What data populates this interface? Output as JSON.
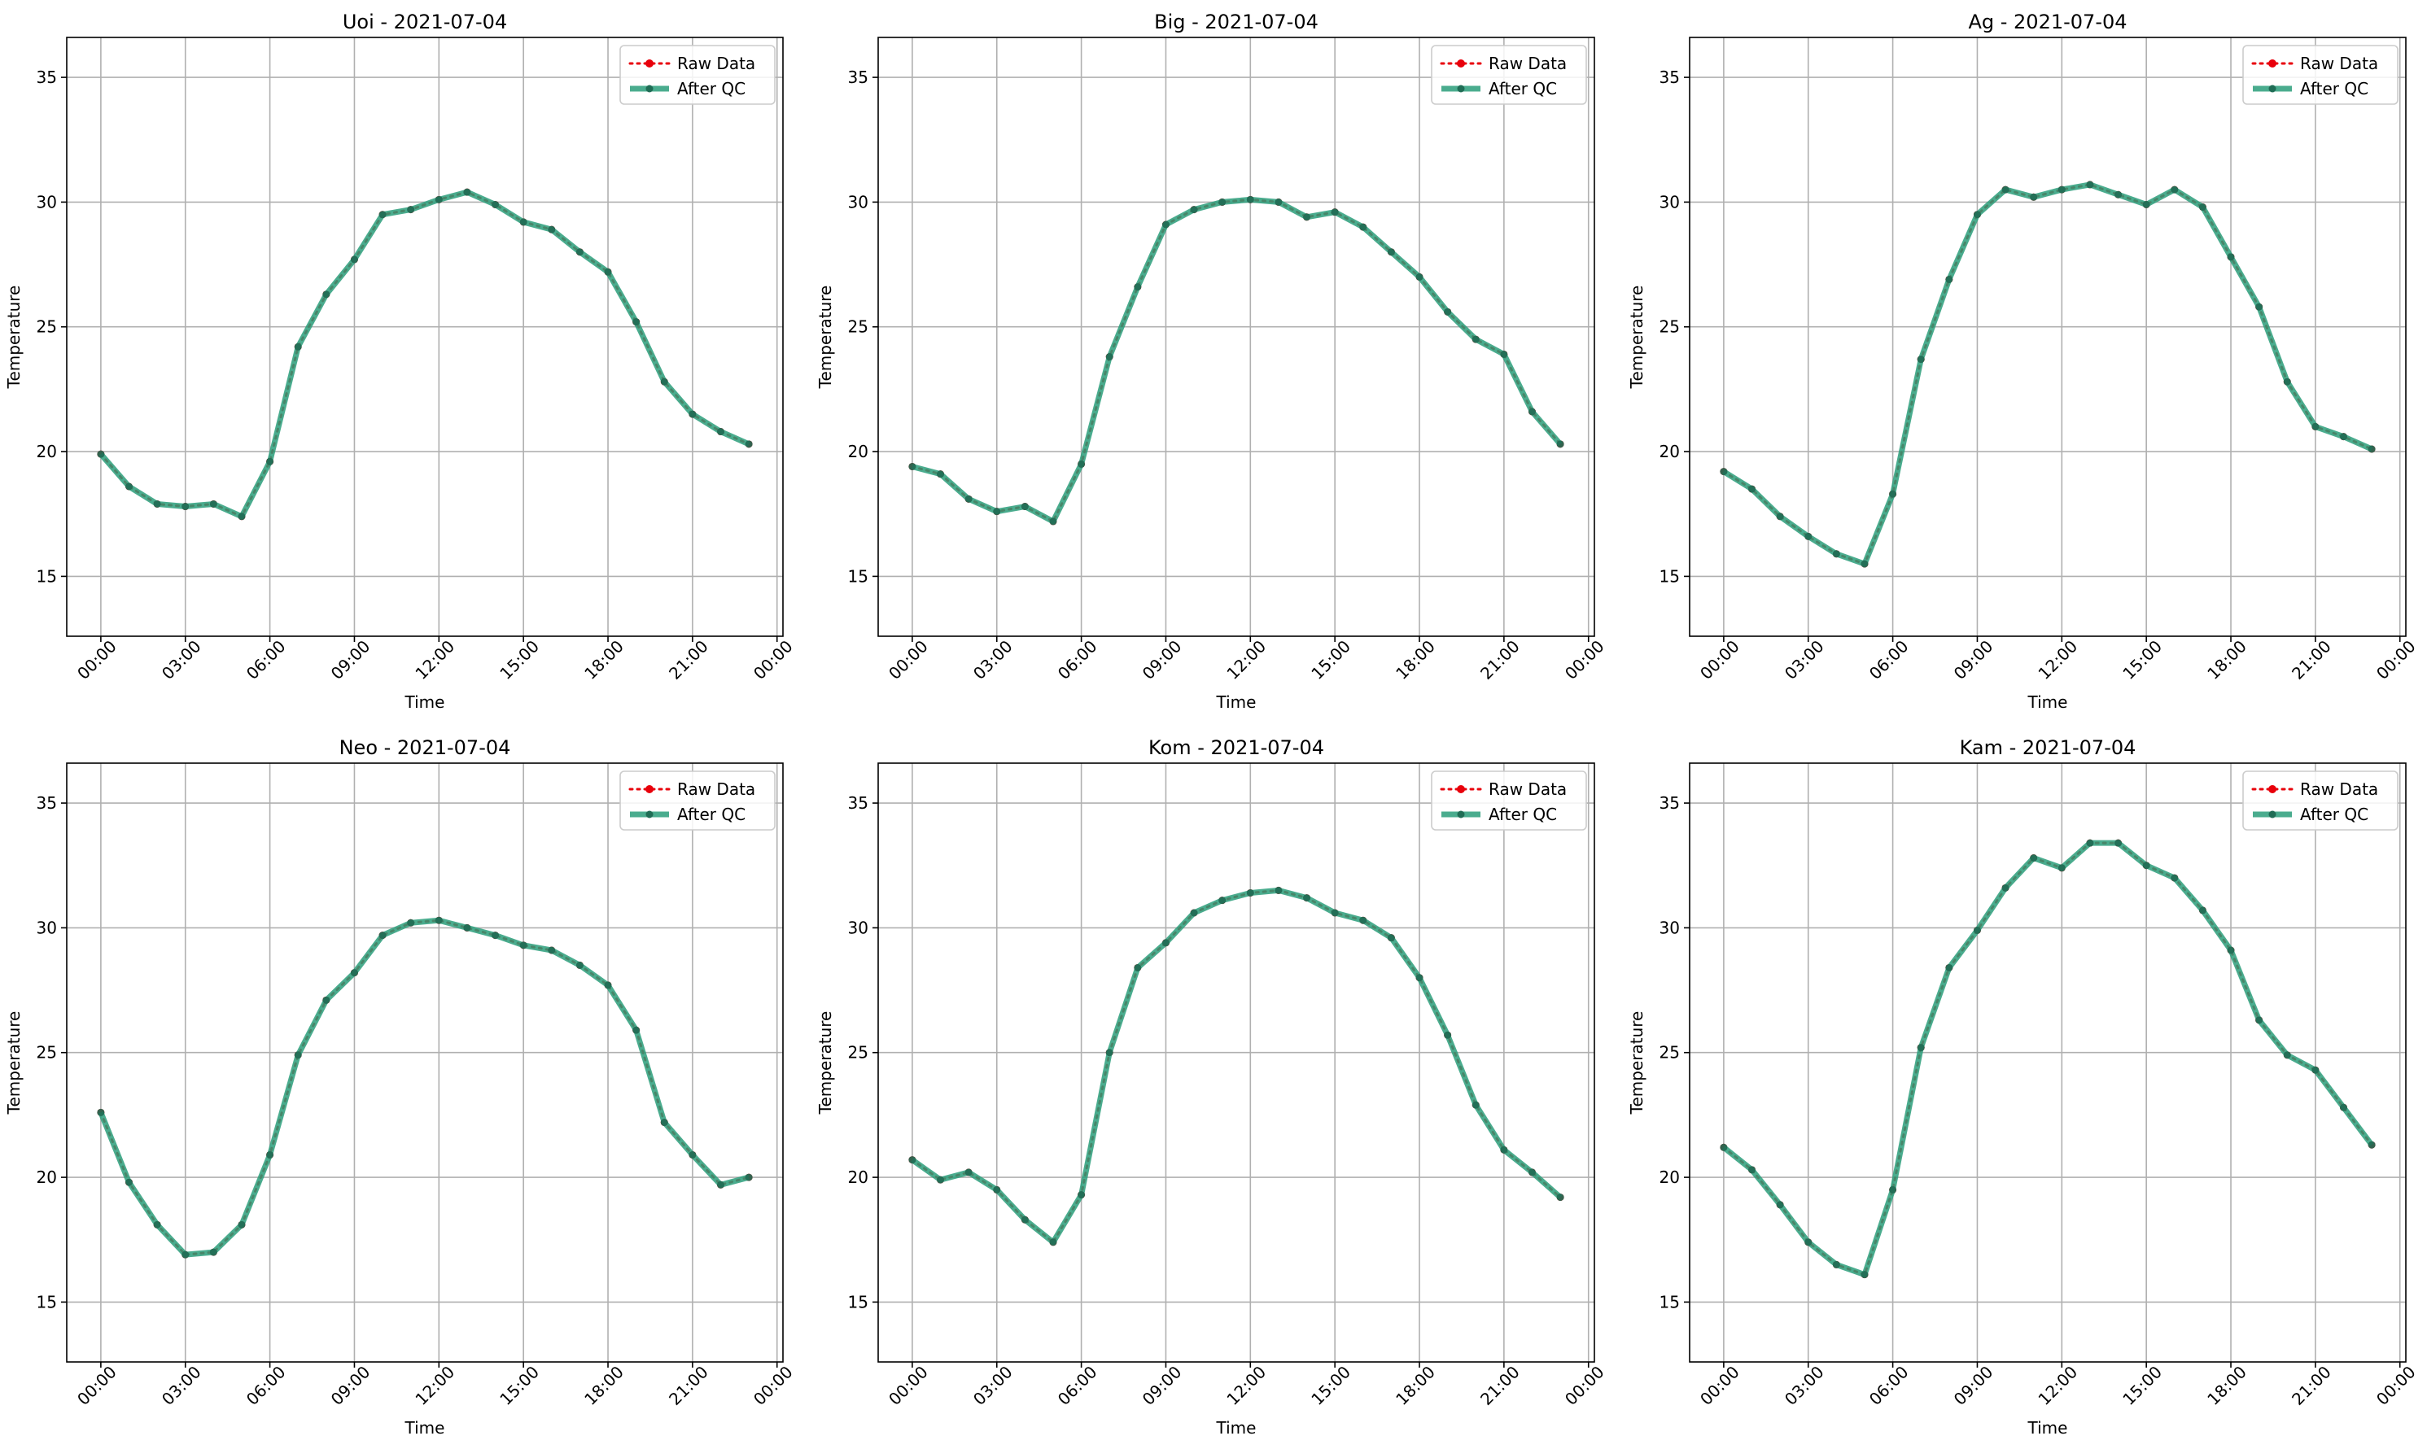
{
  "legend": {
    "raw_label": "Raw Data",
    "qc_label": "After QC"
  },
  "colors": {
    "raw": "#e8000b",
    "qc": "#2a9d7a",
    "grid": "#b0b0b0",
    "axis": "#000000"
  },
  "chart_data": [
    {
      "type": "line",
      "title": "Uoi - 2021-07-04",
      "xlabel": "Time",
      "ylabel": "Temperature",
      "xticks": [
        "00:00",
        "03:00",
        "06:00",
        "09:00",
        "12:00",
        "15:00",
        "18:00",
        "21:00",
        "00:00"
      ],
      "yticks": [
        15,
        20,
        25,
        30,
        35
      ],
      "ylim": [
        12.6,
        36.6
      ],
      "grid": true,
      "legend_position": "top-right",
      "x": [
        "00:00",
        "01:00",
        "02:00",
        "03:00",
        "04:00",
        "05:00",
        "06:00",
        "07:00",
        "08:00",
        "09:00",
        "10:00",
        "11:00",
        "12:00",
        "13:00",
        "14:00",
        "15:00",
        "16:00",
        "17:00",
        "18:00",
        "19:00",
        "20:00",
        "21:00",
        "22:00",
        "23:00"
      ],
      "series": [
        {
          "name": "Raw Data",
          "values": [
            19.9,
            18.6,
            17.9,
            17.8,
            17.9,
            17.4,
            19.6,
            24.2,
            26.3,
            27.7,
            29.5,
            29.7,
            30.1,
            30.4,
            29.9,
            29.2,
            28.9,
            28.0,
            27.2,
            25.2,
            22.8,
            21.5,
            20.8,
            20.3
          ]
        },
        {
          "name": "After QC",
          "values": [
            19.9,
            18.6,
            17.9,
            17.8,
            17.9,
            17.4,
            19.6,
            24.2,
            26.3,
            27.7,
            29.5,
            29.7,
            30.1,
            30.4,
            29.9,
            29.2,
            28.9,
            28.0,
            27.2,
            25.2,
            22.8,
            21.5,
            20.8,
            20.3
          ]
        }
      ]
    },
    {
      "type": "line",
      "title": "Big - 2021-07-04",
      "xlabel": "Time",
      "ylabel": "Temperature",
      "xticks": [
        "00:00",
        "03:00",
        "06:00",
        "09:00",
        "12:00",
        "15:00",
        "18:00",
        "21:00",
        "00:00"
      ],
      "yticks": [
        15,
        20,
        25,
        30,
        35
      ],
      "ylim": [
        12.6,
        36.6
      ],
      "grid": true,
      "legend_position": "top-right",
      "x": [
        "00:00",
        "01:00",
        "02:00",
        "03:00",
        "04:00",
        "05:00",
        "06:00",
        "07:00",
        "08:00",
        "09:00",
        "10:00",
        "11:00",
        "12:00",
        "13:00",
        "14:00",
        "15:00",
        "16:00",
        "17:00",
        "18:00",
        "19:00",
        "20:00",
        "21:00",
        "22:00",
        "23:00"
      ],
      "series": [
        {
          "name": "Raw Data",
          "values": [
            19.4,
            19.1,
            18.1,
            17.6,
            17.8,
            17.2,
            19.5,
            23.8,
            26.6,
            29.1,
            29.7,
            30.0,
            30.1,
            30.0,
            29.4,
            29.6,
            29.0,
            28.0,
            27.0,
            25.6,
            24.5,
            23.9,
            21.6,
            20.3
          ]
        },
        {
          "name": "After QC",
          "values": [
            19.4,
            19.1,
            18.1,
            17.6,
            17.8,
            17.2,
            19.5,
            23.8,
            26.6,
            29.1,
            29.7,
            30.0,
            30.1,
            30.0,
            29.4,
            29.6,
            29.0,
            28.0,
            27.0,
            25.6,
            24.5,
            23.9,
            21.6,
            20.3
          ]
        }
      ]
    },
    {
      "type": "line",
      "title": "Ag - 2021-07-04",
      "xlabel": "Time",
      "ylabel": "Temperature",
      "xticks": [
        "00:00",
        "03:00",
        "06:00",
        "09:00",
        "12:00",
        "15:00",
        "18:00",
        "21:00",
        "00:00"
      ],
      "yticks": [
        15,
        20,
        25,
        30,
        35
      ],
      "ylim": [
        12.6,
        36.6
      ],
      "grid": true,
      "legend_position": "top-right",
      "x": [
        "00:00",
        "01:00",
        "02:00",
        "03:00",
        "04:00",
        "05:00",
        "06:00",
        "07:00",
        "08:00",
        "09:00",
        "10:00",
        "11:00",
        "12:00",
        "13:00",
        "14:00",
        "15:00",
        "16:00",
        "17:00",
        "18:00",
        "19:00",
        "20:00",
        "21:00",
        "22:00",
        "23:00"
      ],
      "series": [
        {
          "name": "Raw Data",
          "values": [
            19.2,
            18.5,
            17.4,
            16.6,
            15.9,
            15.5,
            18.3,
            23.7,
            26.9,
            29.5,
            30.5,
            30.2,
            30.5,
            30.7,
            30.3,
            29.9,
            30.5,
            29.8,
            27.8,
            25.8,
            22.8,
            21.0,
            20.6,
            20.1
          ]
        },
        {
          "name": "After QC",
          "values": [
            19.2,
            18.5,
            17.4,
            16.6,
            15.9,
            15.5,
            18.3,
            23.7,
            26.9,
            29.5,
            30.5,
            30.2,
            30.5,
            30.7,
            30.3,
            29.9,
            30.5,
            29.8,
            27.8,
            25.8,
            22.8,
            21.0,
            20.6,
            20.1
          ]
        }
      ]
    },
    {
      "type": "line",
      "title": "Neo - 2021-07-04",
      "xlabel": "Time",
      "ylabel": "Temperature",
      "xticks": [
        "00:00",
        "03:00",
        "06:00",
        "09:00",
        "12:00",
        "15:00",
        "18:00",
        "21:00",
        "00:00"
      ],
      "yticks": [
        15,
        20,
        25,
        30,
        35
      ],
      "ylim": [
        12.6,
        36.6
      ],
      "grid": true,
      "legend_position": "top-right",
      "x": [
        "00:00",
        "01:00",
        "02:00",
        "03:00",
        "04:00",
        "05:00",
        "06:00",
        "07:00",
        "08:00",
        "09:00",
        "10:00",
        "11:00",
        "12:00",
        "13:00",
        "14:00",
        "15:00",
        "16:00",
        "17:00",
        "18:00",
        "19:00",
        "20:00",
        "21:00",
        "22:00",
        "23:00"
      ],
      "series": [
        {
          "name": "Raw Data",
          "values": [
            22.6,
            19.8,
            18.1,
            16.9,
            17.0,
            18.1,
            20.9,
            24.9,
            27.1,
            28.2,
            29.7,
            30.2,
            30.3,
            30.0,
            29.7,
            29.3,
            29.1,
            28.5,
            27.7,
            25.9,
            22.2,
            20.9,
            19.7,
            20.0
          ]
        },
        {
          "name": "After QC",
          "values": [
            22.6,
            19.8,
            18.1,
            16.9,
            17.0,
            18.1,
            20.9,
            24.9,
            27.1,
            28.2,
            29.7,
            30.2,
            30.3,
            30.0,
            29.7,
            29.3,
            29.1,
            28.5,
            27.7,
            25.9,
            22.2,
            20.9,
            19.7,
            20.0
          ]
        }
      ]
    },
    {
      "type": "line",
      "title": "Kom - 2021-07-04",
      "xlabel": "Time",
      "ylabel": "Temperature",
      "xticks": [
        "00:00",
        "03:00",
        "06:00",
        "09:00",
        "12:00",
        "15:00",
        "18:00",
        "21:00",
        "00:00"
      ],
      "yticks": [
        15,
        20,
        25,
        30,
        35
      ],
      "ylim": [
        12.6,
        36.6
      ],
      "grid": true,
      "legend_position": "top-right",
      "x": [
        "00:00",
        "01:00",
        "02:00",
        "03:00",
        "04:00",
        "05:00",
        "06:00",
        "07:00",
        "08:00",
        "09:00",
        "10:00",
        "11:00",
        "12:00",
        "13:00",
        "14:00",
        "15:00",
        "16:00",
        "17:00",
        "18:00",
        "19:00",
        "20:00",
        "21:00",
        "22:00",
        "23:00"
      ],
      "series": [
        {
          "name": "Raw Data",
          "values": [
            20.7,
            19.9,
            20.2,
            19.5,
            18.3,
            17.4,
            19.3,
            25.0,
            28.4,
            29.4,
            30.6,
            31.1,
            31.4,
            31.5,
            31.2,
            30.6,
            30.3,
            29.6,
            28.0,
            25.7,
            22.9,
            21.1,
            20.2,
            19.2
          ]
        },
        {
          "name": "After QC",
          "values": [
            20.7,
            19.9,
            20.2,
            19.5,
            18.3,
            17.4,
            19.3,
            25.0,
            28.4,
            29.4,
            30.6,
            31.1,
            31.4,
            31.5,
            31.2,
            30.6,
            30.3,
            29.6,
            28.0,
            25.7,
            22.9,
            21.1,
            20.2,
            19.2
          ]
        }
      ]
    },
    {
      "type": "line",
      "title": "Kam - 2021-07-04",
      "xlabel": "Time",
      "ylabel": "Temperature",
      "xticks": [
        "00:00",
        "03:00",
        "06:00",
        "09:00",
        "12:00",
        "15:00",
        "18:00",
        "21:00",
        "00:00"
      ],
      "yticks": [
        15,
        20,
        25,
        30,
        35
      ],
      "ylim": [
        12.6,
        36.6
      ],
      "grid": true,
      "legend_position": "top-right",
      "x": [
        "00:00",
        "01:00",
        "02:00",
        "03:00",
        "04:00",
        "05:00",
        "06:00",
        "07:00",
        "08:00",
        "09:00",
        "10:00",
        "11:00",
        "12:00",
        "13:00",
        "14:00",
        "15:00",
        "16:00",
        "17:00",
        "18:00",
        "19:00",
        "20:00",
        "21:00",
        "22:00",
        "23:00"
      ],
      "series": [
        {
          "name": "Raw Data",
          "values": [
            21.2,
            20.3,
            18.9,
            17.4,
            16.5,
            16.1,
            19.5,
            25.2,
            28.4,
            29.9,
            31.6,
            32.8,
            32.4,
            33.4,
            33.4,
            32.5,
            32.0,
            30.7,
            29.1,
            26.3,
            24.9,
            24.3,
            22.8,
            21.3
          ]
        },
        {
          "name": "After QC",
          "values": [
            21.2,
            20.3,
            18.9,
            17.4,
            16.5,
            16.1,
            19.5,
            25.2,
            28.4,
            29.9,
            31.6,
            32.8,
            32.4,
            33.4,
            33.4,
            32.5,
            32.0,
            30.7,
            29.1,
            26.3,
            24.9,
            24.3,
            22.8,
            21.3
          ]
        }
      ]
    }
  ]
}
